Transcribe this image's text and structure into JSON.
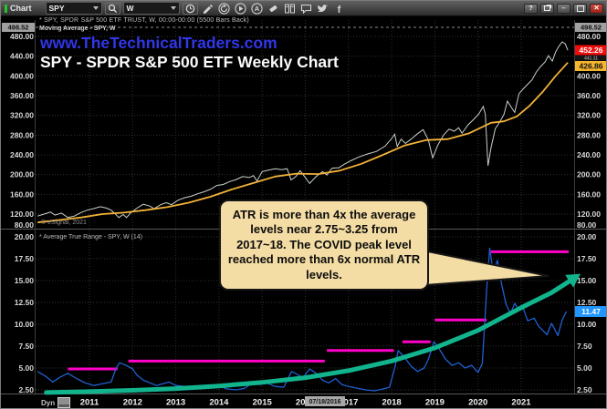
{
  "window": {
    "app_label": "Chart",
    "symbol": "SPY",
    "timeframe": "W",
    "controls": [
      {
        "name": "help",
        "label": "?"
      },
      {
        "name": "restore",
        "label": ""
      },
      {
        "name": "minimize",
        "label": "–"
      },
      {
        "name": "maximize",
        "label": ""
      },
      {
        "name": "close",
        "label": "✕"
      }
    ]
  },
  "toolbar": {
    "icons": [
      "pencil",
      "refresh",
      "play",
      "annotate",
      "eraser",
      "layout",
      "chat",
      "twitter",
      "facebook"
    ]
  },
  "header": {
    "info_line": "* SPY, SPDR S&P 500 ETF TRUST, W, 00:00-00:00 (5500 Bars Back)",
    "indicator_line": "Moving Average - SPY, W",
    "website": "www.TheTechnicalTraders.com",
    "title": "SPY - SPDR S&P 500 ETF Weekly Chart",
    "copyright": "© eSignal, 2021",
    "atr_label": "* Average True Range - SPY, W (14)",
    "dyn_label": "Dyn"
  },
  "badges": {
    "session_high": "498.52",
    "last_price": "452.26",
    "prev_level": "441.11",
    "ma_value": "426.86",
    "atr_value": "11.47",
    "cursor_date": "07/18/2016"
  },
  "callout": {
    "text": "ATR is more than 4x the average levels near 2.75~3.25 from 2017~18.  The COVID peak level reached more than 6x normal ATR levels."
  },
  "colors": {
    "price_line": "#c9d2c9",
    "moving_average": "#f2b238",
    "atr_line": "#2060d0",
    "resistance": "#ff00c8",
    "trend_arrow": "#12b48e",
    "website_blue": "#3136e8",
    "last_price_badge": "#ee0e0e",
    "ma_badge": "#f5b52e",
    "atr_badge": "#2196ff"
  },
  "chart_data": [
    {
      "type": "line",
      "name": "SPY weekly price pane",
      "x_years": [
        2011,
        2012,
        2013,
        2014,
        2015,
        2016,
        2017,
        2018,
        2019,
        2020,
        2021
      ],
      "yticks": [
        480,
        440,
        400,
        360,
        320,
        280,
        240,
        200,
        160,
        120,
        80
      ],
      "ylim": [
        80,
        500
      ],
      "high_level": 498.52,
      "last_close": 452.26,
      "ma_last": 426.86,
      "series": [
        {
          "name": "SPY close",
          "color": "#c9d2c9",
          "points": [
            [
              2009.8,
              116
            ],
            [
              2009.95,
              120
            ],
            [
              2010.1,
              124
            ],
            [
              2010.2,
              118
            ],
            [
              2010.35,
              122
            ],
            [
              2010.5,
              113
            ],
            [
              2010.65,
              116
            ],
            [
              2010.8,
              123
            ],
            [
              2010.95,
              128
            ],
            [
              2011.1,
              131
            ],
            [
              2011.25,
              135
            ],
            [
              2011.4,
              132
            ],
            [
              2011.5,
              128
            ],
            [
              2011.6,
              120
            ],
            [
              2011.68,
              113
            ],
            [
              2011.78,
              119
            ],
            [
              2011.86,
              113
            ],
            [
              2011.95,
              122
            ],
            [
              2012.1,
              132
            ],
            [
              2012.25,
              140
            ],
            [
              2012.4,
              136
            ],
            [
              2012.5,
              131
            ],
            [
              2012.65,
              139
            ],
            [
              2012.78,
              143
            ],
            [
              2012.9,
              139
            ],
            [
              2013.05,
              148
            ],
            [
              2013.2,
              153
            ],
            [
              2013.35,
              156
            ],
            [
              2013.5,
              161
            ],
            [
              2013.65,
              165
            ],
            [
              2013.8,
              170
            ],
            [
              2013.95,
              178
            ],
            [
              2014.1,
              180
            ],
            [
              2014.25,
              186
            ],
            [
              2014.4,
              190
            ],
            [
              2014.55,
              196
            ],
            [
              2014.7,
              194
            ],
            [
              2014.8,
              198
            ],
            [
              2014.88,
              187
            ],
            [
              2015.0,
              206
            ],
            [
              2015.15,
              209
            ],
            [
              2015.3,
              212
            ],
            [
              2015.45,
              210
            ],
            [
              2015.58,
              212
            ],
            [
              2015.67,
              189
            ],
            [
              2015.78,
              196
            ],
            [
              2015.88,
              208
            ],
            [
              2016.0,
              194
            ],
            [
              2016.1,
              182
            ],
            [
              2016.25,
              196
            ],
            [
              2016.4,
              206
            ],
            [
              2016.5,
              199
            ],
            [
              2016.62,
              213
            ],
            [
              2016.78,
              214
            ],
            [
              2016.9,
              221
            ],
            [
              2017.05,
              228
            ],
            [
              2017.25,
              236
            ],
            [
              2017.45,
              242
            ],
            [
              2017.65,
              247
            ],
            [
              2017.85,
              258
            ],
            [
              2018.0,
              273
            ],
            [
              2018.07,
              282
            ],
            [
              2018.13,
              257
            ],
            [
              2018.22,
              272
            ],
            [
              2018.32,
              263
            ],
            [
              2018.45,
              272
            ],
            [
              2018.6,
              283
            ],
            [
              2018.73,
              291
            ],
            [
              2018.85,
              270
            ],
            [
              2018.95,
              234
            ],
            [
              2019.07,
              260
            ],
            [
              2019.2,
              280
            ],
            [
              2019.33,
              292
            ],
            [
              2019.45,
              288
            ],
            [
              2019.55,
              295
            ],
            [
              2019.63,
              284
            ],
            [
              2019.77,
              301
            ],
            [
              2019.9,
              312
            ],
            [
              2020.02,
              323
            ],
            [
              2020.12,
              338
            ],
            [
              2020.17,
              322
            ],
            [
              2020.23,
              218
            ],
            [
              2020.3,
              254
            ],
            [
              2020.4,
              293
            ],
            [
              2020.5,
              306
            ],
            [
              2020.6,
              322
            ],
            [
              2020.68,
              349
            ],
            [
              2020.78,
              335
            ],
            [
              2020.85,
              326
            ],
            [
              2020.95,
              364
            ],
            [
              2021.05,
              374
            ],
            [
              2021.15,
              383
            ],
            [
              2021.25,
              392
            ],
            [
              2021.35,
              408
            ],
            [
              2021.45,
              419
            ],
            [
              2021.55,
              428
            ],
            [
              2021.63,
              441
            ],
            [
              2021.72,
              430
            ],
            [
              2021.8,
              449
            ],
            [
              2021.88,
              461
            ],
            [
              2021.95,
              469
            ],
            [
              2022.02,
              465
            ],
            [
              2022.08,
              452
            ]
          ]
        },
        {
          "name": "Moving Average",
          "color": "#f2b238",
          "points": [
            [
              2009.8,
              103
            ],
            [
              2010.3,
              108
            ],
            [
              2010.8,
              113
            ],
            [
              2011.3,
              120
            ],
            [
              2011.8,
              123
            ],
            [
              2012.3,
              128
            ],
            [
              2012.8,
              134
            ],
            [
              2013.3,
              143
            ],
            [
              2013.8,
              155
            ],
            [
              2014.3,
              170
            ],
            [
              2014.8,
              183
            ],
            [
              2015.3,
              196
            ],
            [
              2015.8,
              202
            ],
            [
              2016.3,
              201
            ],
            [
              2016.8,
              208
            ],
            [
              2017.3,
              222
            ],
            [
              2017.8,
              240
            ],
            [
              2018.3,
              259
            ],
            [
              2018.8,
              270
            ],
            [
              2019.3,
              272
            ],
            [
              2019.8,
              284
            ],
            [
              2020.3,
              305
            ],
            [
              2020.6,
              308
            ],
            [
              2020.9,
              318
            ],
            [
              2021.2,
              340
            ],
            [
              2021.5,
              368
            ],
            [
              2021.8,
              400
            ],
            [
              2022.08,
              427
            ]
          ]
        }
      ]
    },
    {
      "type": "line",
      "name": "Average True Range (14) pane",
      "yticks": [
        20,
        17.5,
        15,
        12.5,
        10,
        7.5,
        5,
        2.5
      ],
      "ylim": [
        1.5,
        21
      ],
      "last_value": 11.47,
      "level_color": "#ff00c8",
      "levels": [
        {
          "value": 4.9,
          "from": 2010.5,
          "to": 2011.65
        },
        {
          "value": 5.8,
          "from": 2011.9,
          "to": 2016.45
        },
        {
          "value": 7.0,
          "from": 2016.5,
          "to": 2018.05
        },
        {
          "value": 8.0,
          "from": 2018.25,
          "to": 2018.9
        },
        {
          "value": 10.5,
          "from": 2019.0,
          "to": 2020.2
        },
        {
          "value": 18.3,
          "from": 2020.3,
          "to": 2022.1
        }
      ],
      "series": [
        {
          "name": "ATR",
          "color": "#2060d0",
          "points": [
            [
              2009.8,
              4.6
            ],
            [
              2010.0,
              4.0
            ],
            [
              2010.15,
              3.4
            ],
            [
              2010.3,
              3.9
            ],
            [
              2010.5,
              4.4
            ],
            [
              2010.7,
              3.8
            ],
            [
              2010.9,
              3.3
            ],
            [
              2011.1,
              3.0
            ],
            [
              2011.3,
              3.2
            ],
            [
              2011.5,
              3.4
            ],
            [
              2011.62,
              5.0
            ],
            [
              2011.7,
              5.6
            ],
            [
              2011.85,
              5.3
            ],
            [
              2012.0,
              4.9
            ],
            [
              2012.1,
              4.2
            ],
            [
              2012.25,
              3.6
            ],
            [
              2012.4,
              3.3
            ],
            [
              2012.55,
              3.0
            ],
            [
              2012.7,
              3.2
            ],
            [
              2012.85,
              3.4
            ],
            [
              2013.0,
              3.0
            ],
            [
              2013.2,
              2.9
            ],
            [
              2013.4,
              2.7
            ],
            [
              2013.6,
              2.9
            ],
            [
              2013.8,
              2.7
            ],
            [
              2014.0,
              2.9
            ],
            [
              2014.2,
              2.6
            ],
            [
              2014.4,
              2.5
            ],
            [
              2014.6,
              2.7
            ],
            [
              2014.8,
              3.4
            ],
            [
              2014.95,
              3.1
            ],
            [
              2015.1,
              3.3
            ],
            [
              2015.3,
              2.9
            ],
            [
              2015.5,
              2.8
            ],
            [
              2015.68,
              4.6
            ],
            [
              2015.8,
              4.3
            ],
            [
              2015.95,
              3.9
            ],
            [
              2016.1,
              4.9
            ],
            [
              2016.25,
              4.4
            ],
            [
              2016.4,
              3.6
            ],
            [
              2016.55,
              3.3
            ],
            [
              2016.7,
              3.8
            ],
            [
              2016.85,
              3.1
            ],
            [
              2017.0,
              2.9
            ],
            [
              2017.2,
              2.7
            ],
            [
              2017.4,
              2.5
            ],
            [
              2017.6,
              2.4
            ],
            [
              2017.8,
              2.6
            ],
            [
              2017.95,
              2.8
            ],
            [
              2018.08,
              5.2
            ],
            [
              2018.15,
              7.0
            ],
            [
              2018.3,
              6.2
            ],
            [
              2018.45,
              5.2
            ],
            [
              2018.6,
              4.6
            ],
            [
              2018.75,
              5.0
            ],
            [
              2018.85,
              6.0
            ],
            [
              2018.98,
              8.0
            ],
            [
              2019.1,
              7.2
            ],
            [
              2019.25,
              6.0
            ],
            [
              2019.4,
              5.3
            ],
            [
              2019.55,
              5.6
            ],
            [
              2019.7,
              5.0
            ],
            [
              2019.85,
              5.3
            ],
            [
              2020.0,
              4.5
            ],
            [
              2020.1,
              5.5
            ],
            [
              2020.2,
              14.0
            ],
            [
              2020.27,
              18.7
            ],
            [
              2020.35,
              16.0
            ],
            [
              2020.45,
              17.3
            ],
            [
              2020.55,
              14.5
            ],
            [
              2020.65,
              12.3
            ],
            [
              2020.75,
              11.2
            ],
            [
              2020.85,
              12.4
            ],
            [
              2020.95,
              11.6
            ],
            [
              2021.05,
              11.8
            ],
            [
              2021.15,
              10.4
            ],
            [
              2021.3,
              10.7
            ],
            [
              2021.4,
              9.8
            ],
            [
              2021.5,
              9.3
            ],
            [
              2021.6,
              8.8
            ],
            [
              2021.7,
              10.1
            ],
            [
              2021.78,
              9.4
            ],
            [
              2021.85,
              8.7
            ],
            [
              2021.95,
              10.5
            ],
            [
              2022.05,
              11.47
            ]
          ]
        },
        {
          "name": "trend-arrow",
          "color": "#12b48e",
          "points": [
            [
              2010.0,
              2.2
            ],
            [
              2011.0,
              2.3
            ],
            [
              2012.0,
              2.45
            ],
            [
              2013.0,
              2.65
            ],
            [
              2014.0,
              2.95
            ],
            [
              2015.0,
              3.35
            ],
            [
              2016.0,
              3.9
            ],
            [
              2017.0,
              4.7
            ],
            [
              2018.0,
              5.8
            ],
            [
              2019.0,
              7.3
            ],
            [
              2020.0,
              9.3
            ],
            [
              2021.0,
              11.9
            ],
            [
              2021.7,
              13.6
            ],
            [
              2022.2,
              15.2
            ]
          ]
        }
      ]
    }
  ]
}
